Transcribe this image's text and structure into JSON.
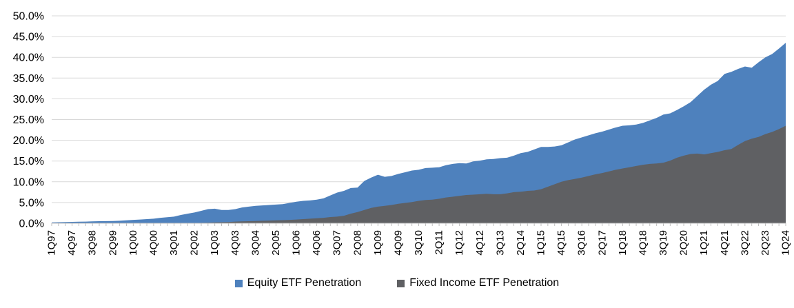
{
  "chart_data": {
    "type": "area",
    "mode": "overlapping",
    "title": "",
    "background": "#FFFFFF",
    "text_color": "#000000",
    "gridline_color": "#D9D9D9",
    "axis_line_color": "#BFBFBF",
    "grid": true,
    "legend_position": "bottom-center",
    "y_axis": {
      "min": 0,
      "max": 50,
      "step": 5,
      "tick_labels": [
        "0.0%",
        "5.0%",
        "10.0%",
        "15.0%",
        "20.0%",
        "25.0%",
        "30.0%",
        "35.0%",
        "40.0%",
        "45.0%",
        "50.0%"
      ]
    },
    "x_axis": {
      "first_quarter": "1Q97",
      "last_quarter": "1Q24",
      "points_per_series": 109,
      "label_every_n_points": 3,
      "tick_labels": [
        "1Q97",
        "4Q97",
        "3Q98",
        "2Q99",
        "1Q00",
        "4Q00",
        "3Q01",
        "2Q02",
        "1Q03",
        "4Q03",
        "3Q04",
        "2Q05",
        "1Q06",
        "4Q06",
        "3Q07",
        "2Q08",
        "1Q09",
        "4Q09",
        "3Q10",
        "2Q11",
        "1Q12",
        "4Q12",
        "3Q13",
        "2Q14",
        "1Q15",
        "4Q15",
        "3Q16",
        "2Q17",
        "1Q18",
        "4Q18",
        "3Q19",
        "2Q20",
        "1Q21",
        "4Q21",
        "3Q22",
        "2Q23",
        "1Q24"
      ]
    },
    "series": [
      {
        "name": "Equity ETF Penetration",
        "color": "#4E81BD",
        "values": [
          0.2,
          0.25,
          0.3,
          0.33,
          0.38,
          0.4,
          0.45,
          0.5,
          0.52,
          0.55,
          0.6,
          0.7,
          0.8,
          0.9,
          1.0,
          1.1,
          1.3,
          1.45,
          1.6,
          2.0,
          2.3,
          2.6,
          3.0,
          3.4,
          3.5,
          3.2,
          3.2,
          3.4,
          3.8,
          4.0,
          4.2,
          4.3,
          4.4,
          4.5,
          4.6,
          4.9,
          5.2,
          5.4,
          5.5,
          5.7,
          6.0,
          6.7,
          7.4,
          7.8,
          8.5,
          8.6,
          10.2,
          11.0,
          11.7,
          11.2,
          11.4,
          11.9,
          12.3,
          12.7,
          12.9,
          13.3,
          13.4,
          13.5,
          14.0,
          14.3,
          14.5,
          14.4,
          14.9,
          15.1,
          15.4,
          15.5,
          15.7,
          15.8,
          16.3,
          16.9,
          17.2,
          17.8,
          18.4,
          18.4,
          18.5,
          18.8,
          19.5,
          20.2,
          20.7,
          21.2,
          21.7,
          22.1,
          22.6,
          23.1,
          23.5,
          23.6,
          23.8,
          24.2,
          24.8,
          25.4,
          26.2,
          26.5,
          27.3,
          28.2,
          29.2,
          30.7,
          32.2,
          33.4,
          34.3,
          36.0,
          36.5,
          37.2,
          37.8,
          37.5,
          38.8,
          40.0,
          40.8,
          42.1,
          43.5
        ]
      },
      {
        "name": "Fixed Income ETF Penetration",
        "color": "#5F6063",
        "values": [
          0,
          0,
          0,
          0,
          0,
          0,
          0,
          0,
          0,
          0,
          0,
          0,
          0,
          0,
          0,
          0,
          0,
          0,
          0,
          0,
          0,
          0.05,
          0.1,
          0.15,
          0.2,
          0.25,
          0.3,
          0.4,
          0.45,
          0.5,
          0.55,
          0.6,
          0.65,
          0.7,
          0.75,
          0.8,
          0.9,
          1.0,
          1.1,
          1.2,
          1.3,
          1.5,
          1.6,
          1.8,
          2.3,
          2.7,
          3.2,
          3.7,
          4.0,
          4.2,
          4.4,
          4.7,
          4.9,
          5.1,
          5.4,
          5.6,
          5.7,
          5.9,
          6.2,
          6.4,
          6.6,
          6.8,
          6.9,
          7.0,
          7.1,
          7.0,
          7.0,
          7.2,
          7.5,
          7.6,
          7.8,
          7.9,
          8.2,
          8.8,
          9.4,
          10.0,
          10.4,
          10.7,
          11.0,
          11.4,
          11.8,
          12.1,
          12.5,
          12.9,
          13.2,
          13.5,
          13.8,
          14.1,
          14.3,
          14.4,
          14.6,
          15.1,
          15.8,
          16.3,
          16.7,
          16.8,
          16.6,
          16.9,
          17.2,
          17.6,
          17.9,
          18.9,
          19.8,
          20.4,
          20.8,
          21.5,
          22.0,
          22.7,
          23.5
        ]
      }
    ]
  }
}
